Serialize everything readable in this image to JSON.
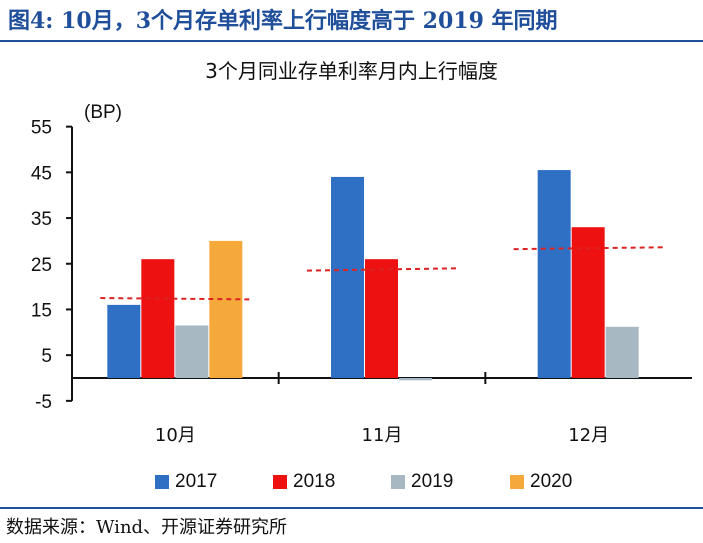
{
  "header": {
    "figure_title": "图4:  10月，3个月存单利率上行幅度高于 2019 年同期",
    "source": "数据来源：Wind、开源证券研究所"
  },
  "chart_data": {
    "type": "bar",
    "title": "3个月同业存单利率月内上行幅度",
    "ylabel": "(BP)",
    "xlabel": "",
    "ylim": [
      -5,
      55
    ],
    "yticks": [
      -5,
      5,
      15,
      25,
      35,
      45,
      55
    ],
    "categories": [
      "10月",
      "11月",
      "12月"
    ],
    "series": [
      {
        "name": "2017",
        "color": "#2f6fc4",
        "values": [
          16,
          44,
          45.5
        ]
      },
      {
        "name": "2018",
        "color": "#ee1111",
        "values": [
          26,
          26,
          33
        ]
      },
      {
        "name": "2019",
        "color": "#a8b8c2",
        "values": [
          11.5,
          -0.5,
          11.2
        ]
      },
      {
        "name": "2020",
        "color": "#f5a93a",
        "values": [
          30,
          null,
          null
        ]
      }
    ],
    "reference_lines": {
      "color": "#dd2222",
      "style": "dashed",
      "segments": [
        [
          17.5,
          17.2
        ],
        [
          23.5,
          24
        ],
        [
          28.2,
          28.6
        ]
      ]
    },
    "legend": "bottom",
    "grid": false
  }
}
